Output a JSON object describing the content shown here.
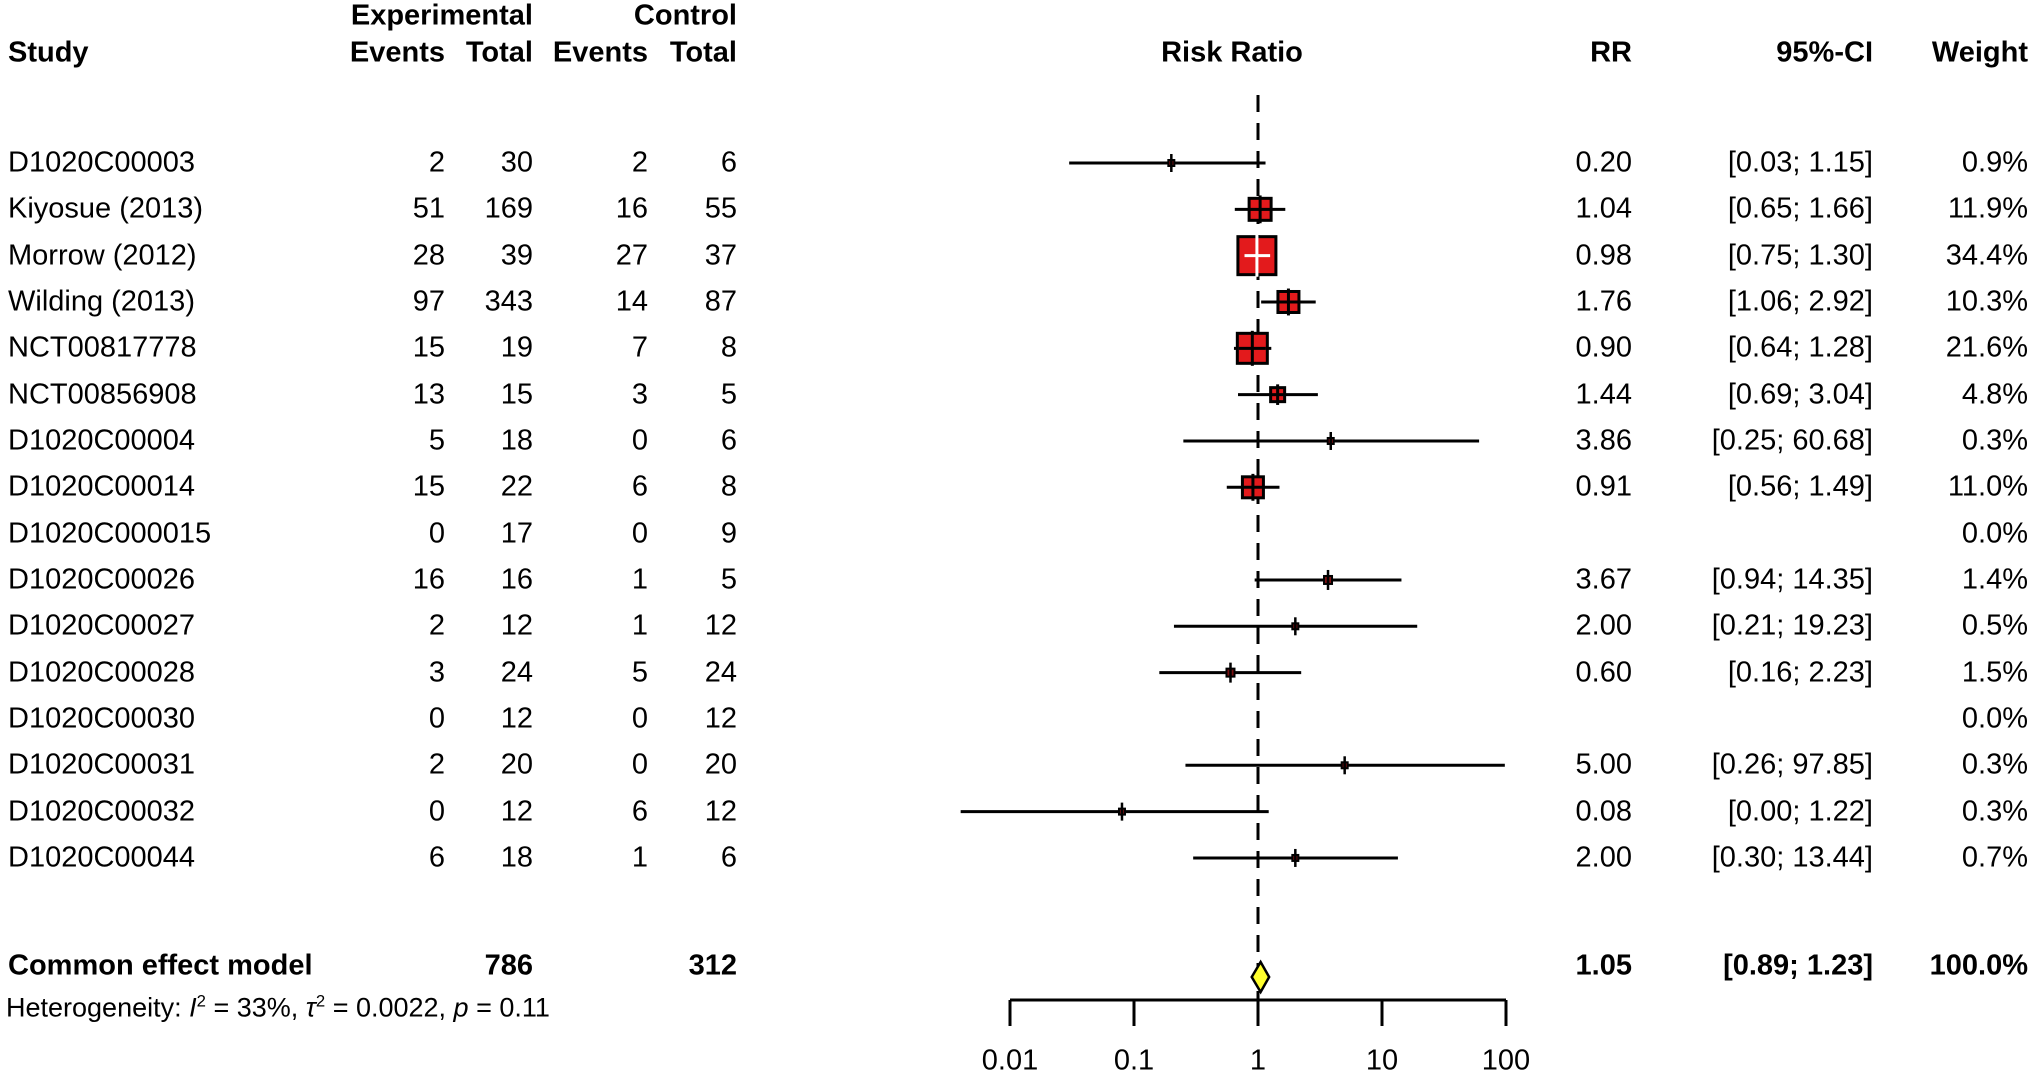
{
  "figure": {
    "columns": {
      "study": "Study",
      "group_experimental": "Experimental",
      "group_control": "Control",
      "events": "Events",
      "total": "Total",
      "risk_ratio": "Risk Ratio",
      "rr": "RR",
      "ci": "95%-CI",
      "weight": "Weight"
    }
  },
  "chart_data": {
    "type": "scatter",
    "subtype": "forest-plot",
    "x_axis": {
      "scale": "log10",
      "ticks": [
        0.01,
        0.1,
        1,
        10,
        100
      ],
      "tick_labels": [
        "0.01",
        "0.1",
        "1",
        "10",
        "100"
      ],
      "range": [
        0.01,
        100
      ],
      "reference_line": 1
    },
    "studies": [
      {
        "study": "D1020C00003",
        "exp_events": "2",
        "exp_total": "30",
        "ctrl_events": "2",
        "ctrl_total": "6",
        "rr_label": "0.20",
        "ci_label": "[0.03; 1.15]",
        "weight_label": "0.9%",
        "rr": 0.2,
        "lower": 0.03,
        "upper": 1.15,
        "weight": 0.9
      },
      {
        "study": "Kiyosue (2013)",
        "exp_events": "51",
        "exp_total": "169",
        "ctrl_events": "16",
        "ctrl_total": "55",
        "rr_label": "1.04",
        "ci_label": "[0.65; 1.66]",
        "weight_label": "11.9%",
        "rr": 1.04,
        "lower": 0.65,
        "upper": 1.66,
        "weight": 11.9
      },
      {
        "study": "Morrow (2012)",
        "exp_events": "28",
        "exp_total": "39",
        "ctrl_events": "27",
        "ctrl_total": "37",
        "rr_label": "0.98",
        "ci_label": "[0.75; 1.30]",
        "weight_label": "34.4%",
        "rr": 0.98,
        "lower": 0.75,
        "upper": 1.3,
        "weight": 34.4
      },
      {
        "study": "Wilding (2013)",
        "exp_events": "97",
        "exp_total": "343",
        "ctrl_events": "14",
        "ctrl_total": "87",
        "rr_label": "1.76",
        "ci_label": "[1.06; 2.92]",
        "weight_label": "10.3%",
        "rr": 1.76,
        "lower": 1.06,
        "upper": 2.92,
        "weight": 10.3
      },
      {
        "study": "NCT00817778",
        "exp_events": "15",
        "exp_total": "19",
        "ctrl_events": "7",
        "ctrl_total": "8",
        "rr_label": "0.90",
        "ci_label": "[0.64; 1.28]",
        "weight_label": "21.6%",
        "rr": 0.9,
        "lower": 0.64,
        "upper": 1.28,
        "weight": 21.6
      },
      {
        "study": "NCT00856908",
        "exp_events": "13",
        "exp_total": "15",
        "ctrl_events": "3",
        "ctrl_total": "5",
        "rr_label": "1.44",
        "ci_label": "[0.69; 3.04]",
        "weight_label": "4.8%",
        "rr": 1.44,
        "lower": 0.69,
        "upper": 3.04,
        "weight": 4.8
      },
      {
        "study": "D1020C00004",
        "exp_events": "5",
        "exp_total": "18",
        "ctrl_events": "0",
        "ctrl_total": "6",
        "rr_label": "3.86",
        "ci_label": "[0.25; 60.68]",
        "weight_label": "0.3%",
        "rr": 3.86,
        "lower": 0.25,
        "upper": 60.68,
        "weight": 0.3
      },
      {
        "study": "D1020C00014",
        "exp_events": "15",
        "exp_total": "22",
        "ctrl_events": "6",
        "ctrl_total": "8",
        "rr_label": "0.91",
        "ci_label": "[0.56; 1.49]",
        "weight_label": "11.0%",
        "rr": 0.91,
        "lower": 0.56,
        "upper": 1.49,
        "weight": 11.0
      },
      {
        "study": "D1020C000015",
        "exp_events": "0",
        "exp_total": "17",
        "ctrl_events": "0",
        "ctrl_total": "9",
        "rr_label": "",
        "ci_label": "",
        "weight_label": "0.0%",
        "rr": null,
        "lower": null,
        "upper": null,
        "weight": 0.0
      },
      {
        "study": "D1020C00026",
        "exp_events": "16",
        "exp_total": "16",
        "ctrl_events": "1",
        "ctrl_total": "5",
        "rr_label": "3.67",
        "ci_label": "[0.94; 14.35]",
        "weight_label": "1.4%",
        "rr": 3.67,
        "lower": 0.94,
        "upper": 14.35,
        "weight": 1.4
      },
      {
        "study": "D1020C00027",
        "exp_events": "2",
        "exp_total": "12",
        "ctrl_events": "1",
        "ctrl_total": "12",
        "rr_label": "2.00",
        "ci_label": "[0.21; 19.23]",
        "weight_label": "0.5%",
        "rr": 2.0,
        "lower": 0.21,
        "upper": 19.23,
        "weight": 0.5
      },
      {
        "study": "D1020C00028",
        "exp_events": "3",
        "exp_total": "24",
        "ctrl_events": "5",
        "ctrl_total": "24",
        "rr_label": "0.60",
        "ci_label": "[0.16; 2.23]",
        "weight_label": "1.5%",
        "rr": 0.6,
        "lower": 0.16,
        "upper": 2.23,
        "weight": 1.5
      },
      {
        "study": "D1020C00030",
        "exp_events": "0",
        "exp_total": "12",
        "ctrl_events": "0",
        "ctrl_total": "12",
        "rr_label": "",
        "ci_label": "",
        "weight_label": "0.0%",
        "rr": null,
        "lower": null,
        "upper": null,
        "weight": 0.0
      },
      {
        "study": "D1020C00031",
        "exp_events": "2",
        "exp_total": "20",
        "ctrl_events": "0",
        "ctrl_total": "20",
        "rr_label": "5.00",
        "ci_label": "[0.26; 97.85]",
        "weight_label": "0.3%",
        "rr": 5.0,
        "lower": 0.26,
        "upper": 97.85,
        "weight": 0.3
      },
      {
        "study": "D1020C00032",
        "exp_events": "0",
        "exp_total": "12",
        "ctrl_events": "6",
        "ctrl_total": "12",
        "rr_label": "0.08",
        "ci_label": "[0.00; 1.22]",
        "weight_label": "0.3%",
        "rr": 0.08,
        "lower": 0.0,
        "upper": 1.22,
        "plot_lower": 0.004,
        "weight": 0.3
      },
      {
        "study": "D1020C00044",
        "exp_events": "6",
        "exp_total": "18",
        "ctrl_events": "1",
        "ctrl_total": "6",
        "rr_label": "2.00",
        "ci_label": "[0.30; 13.44]",
        "weight_label": "0.7%",
        "rr": 2.0,
        "lower": 0.3,
        "upper": 13.44,
        "weight": 0.7
      }
    ],
    "summary": {
      "label": "Common effect model",
      "exp_total": "786",
      "ctrl_total": "312",
      "rr_label": "1.05",
      "ci_label": "[0.89; 1.23]",
      "weight_label": "100.0%",
      "rr": 1.05,
      "lower": 0.89,
      "upper": 1.23
    },
    "heterogeneity_parts": [
      {
        "t": "Heterogeneity: "
      },
      {
        "t": "I",
        "italic": true
      },
      {
        "t": "2",
        "sup": true
      },
      {
        "t": " = 33%, "
      },
      {
        "t": "τ",
        "italic": true
      },
      {
        "t": "2",
        "sup": true
      },
      {
        "t": " = 0.0022, "
      },
      {
        "t": "p",
        "italic": true
      },
      {
        "t": " = 0.11"
      }
    ],
    "colors": {
      "square_fill": "#e31a1c",
      "small_square_fill": "#7a1113",
      "diamond_fill": "#ffff2e",
      "line": "#000000"
    }
  }
}
